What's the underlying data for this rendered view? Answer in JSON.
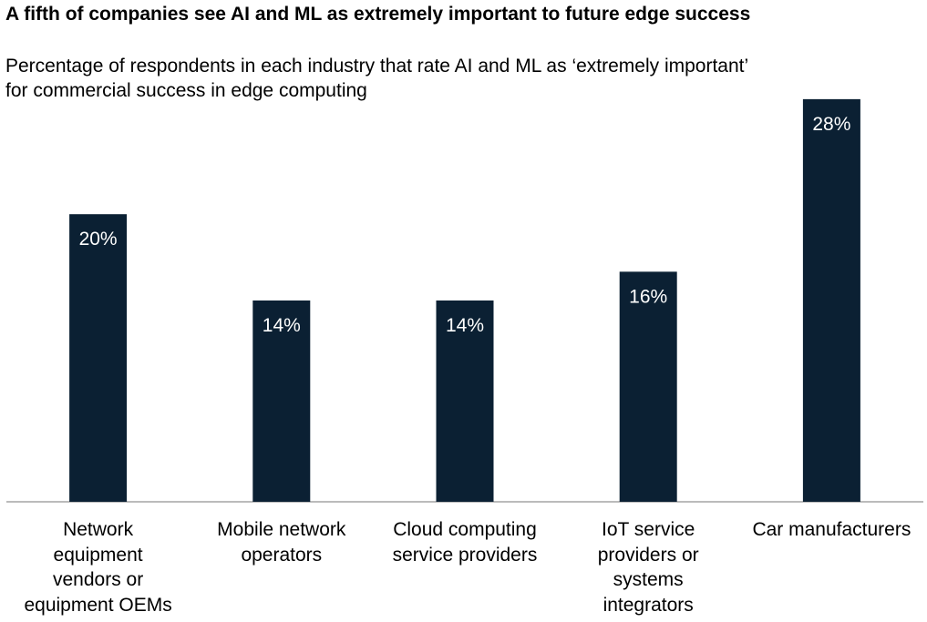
{
  "chart_data": {
    "type": "bar",
    "title": "A fifth of companies see AI and ML as extremely important to future edge success",
    "subtitle": "Percentage of respondents in each industry that rate AI and ML as ‘extremely important’ for commercial success in edge computing",
    "categories": [
      "Network\nequipment\nvendors or\nequipment OEMs",
      "Mobile network\noperators",
      "Cloud computing\nservice providers",
      "IoT service\nproviders or\nsystems\nintegrators",
      "Car manufacturers"
    ],
    "values": [
      20,
      14,
      14,
      16,
      28
    ],
    "value_labels": [
      "20%",
      "14%",
      "14%",
      "16%",
      "28%"
    ],
    "color": "#0b2033"
  }
}
